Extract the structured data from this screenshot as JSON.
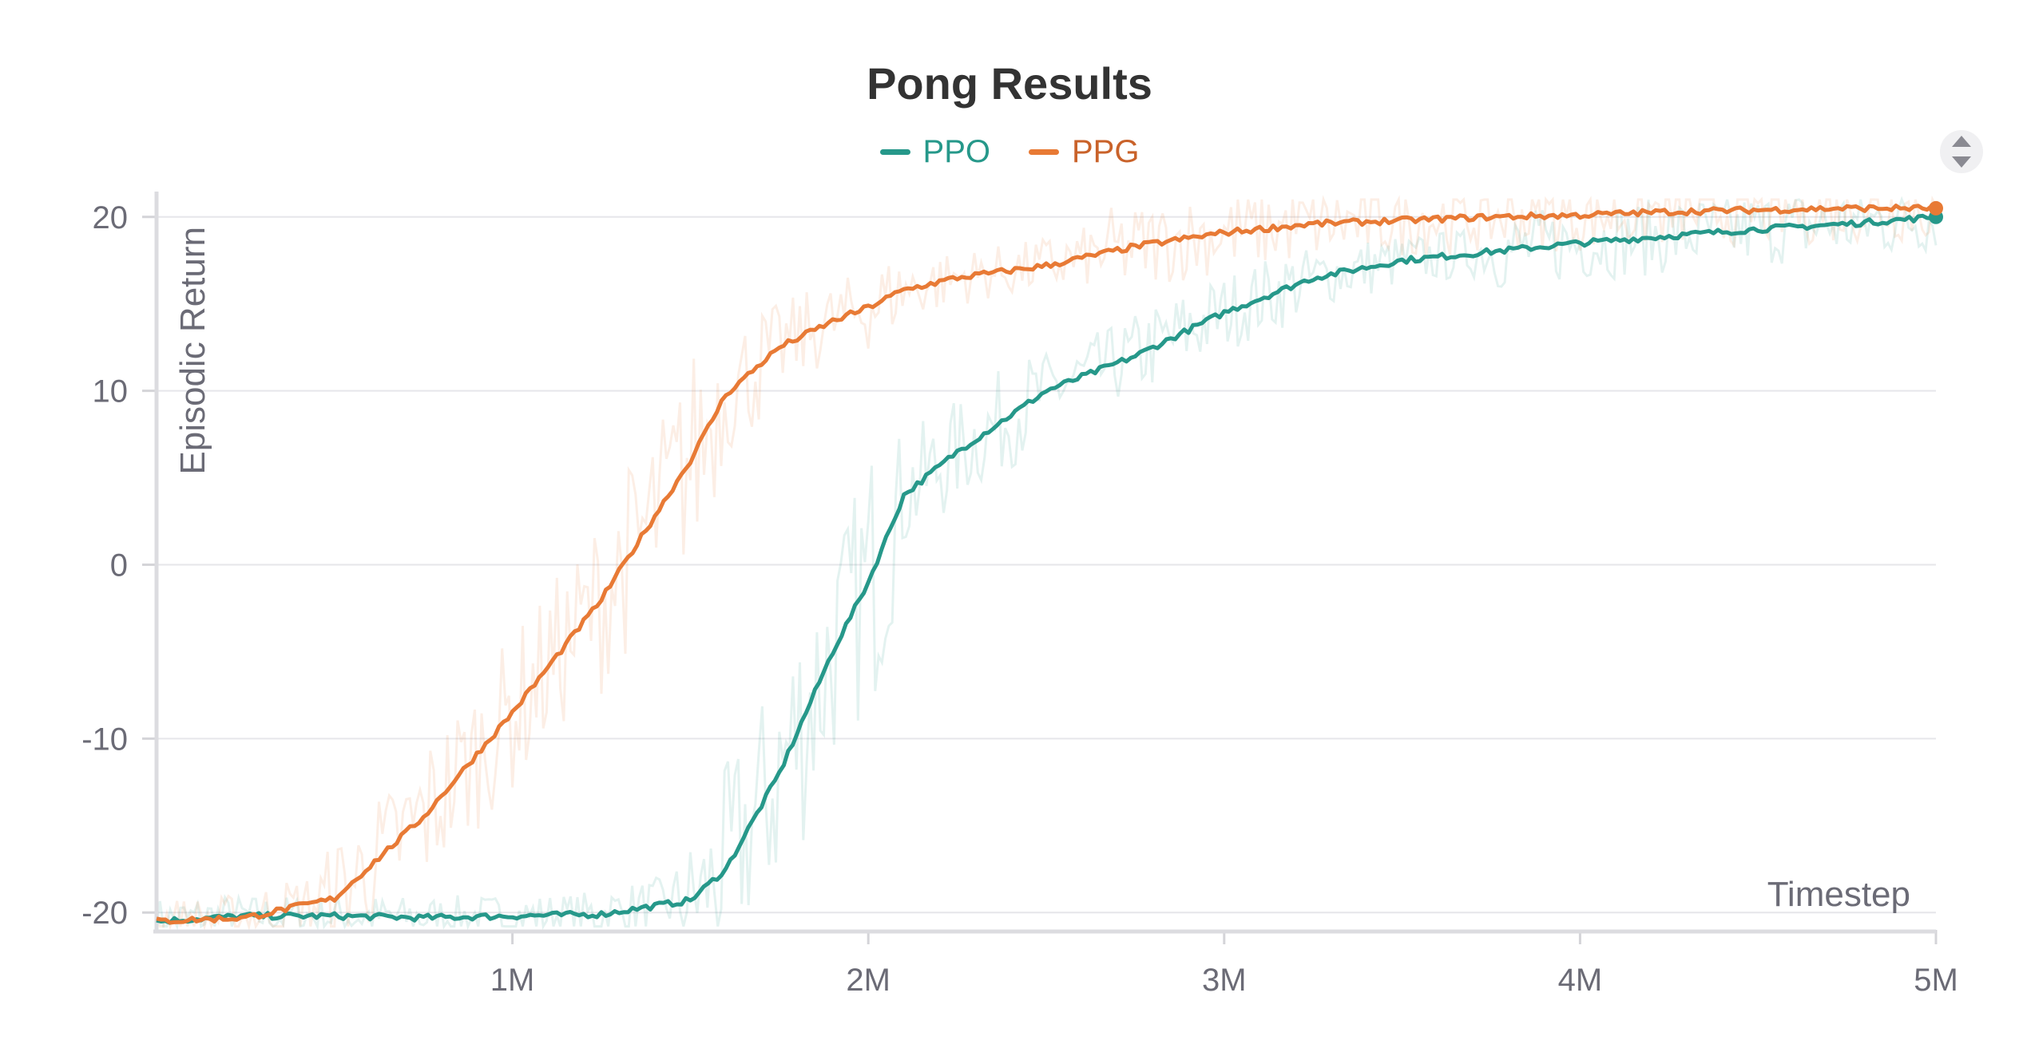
{
  "chart_data": {
    "type": "line",
    "title": "Pong Results",
    "xlabel": "Timestep",
    "ylabel": "Episodic Return",
    "xlim": [
      0,
      5000000
    ],
    "ylim": [
      -21,
      21
    ],
    "xticks": [
      {
        "value": 1000000,
        "label": "1M"
      },
      {
        "value": 2000000,
        "label": "2M"
      },
      {
        "value": 3000000,
        "label": "3M"
      },
      {
        "value": 4000000,
        "label": "4M"
      },
      {
        "value": 5000000,
        "label": "5M"
      }
    ],
    "yticks": [
      {
        "value": -20,
        "label": "-20"
      },
      {
        "value": -10,
        "label": "-10"
      },
      {
        "value": 0,
        "label": "0"
      },
      {
        "value": 10,
        "label": "10"
      },
      {
        "value": 20,
        "label": "20"
      }
    ],
    "grid": true,
    "legend_position": "top-center",
    "x": [
      0,
      250000,
      500000,
      750000,
      1000000,
      1250000,
      1500000,
      1600000,
      1750000,
      1900000,
      2000000,
      2100000,
      2250000,
      2500000,
      2750000,
      3000000,
      3250000,
      3500000,
      3750000,
      4000000,
      4250000,
      4500000,
      4750000,
      5000000
    ],
    "series": [
      {
        "name": "PPO",
        "color": "#26988a",
        "values": [
          -20.5,
          -20.2,
          -20.2,
          -20.3,
          -20.2,
          -20.1,
          -19.3,
          -17.5,
          -12.0,
          -5.0,
          -1.0,
          4.0,
          6.5,
          10.0,
          12.0,
          14.5,
          16.5,
          17.5,
          18.0,
          18.5,
          18.9,
          19.3,
          19.6,
          20.0
        ]
      },
      {
        "name": "PPG",
        "color": "#e87a35",
        "values": [
          -20.5,
          -20.3,
          -19.2,
          -14.5,
          -8.5,
          -2.0,
          6.0,
          9.8,
          12.5,
          14.0,
          14.8,
          15.8,
          16.5,
          17.2,
          18.3,
          19.1,
          19.6,
          19.8,
          20.0,
          20.1,
          20.3,
          20.4,
          20.5,
          20.5
        ]
      }
    ]
  },
  "sort_control": {
    "icon": "sort-arrows-icon"
  }
}
